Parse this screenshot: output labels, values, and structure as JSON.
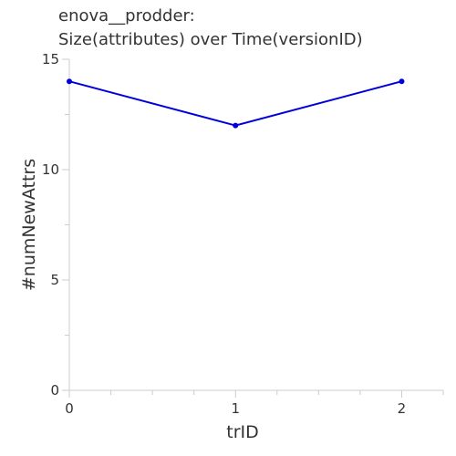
{
  "chart_data": {
    "type": "line",
    "title": "enova__prodder:",
    "subtitle": "Size(attributes) over Time(versionID)",
    "xlabel": "trID",
    "ylabel": "#numNewAttrs",
    "x": [
      0,
      1,
      2
    ],
    "series": [
      {
        "values": [
          14,
          12,
          14
        ]
      }
    ],
    "xlim": [
      0,
      2.25
    ],
    "ylim": [
      0,
      15
    ],
    "xticks": [
      "0",
      "1",
      "2"
    ],
    "yticks": [
      "0",
      "5",
      "10",
      "15"
    ],
    "grid": false,
    "line_color": "#0000dd"
  }
}
